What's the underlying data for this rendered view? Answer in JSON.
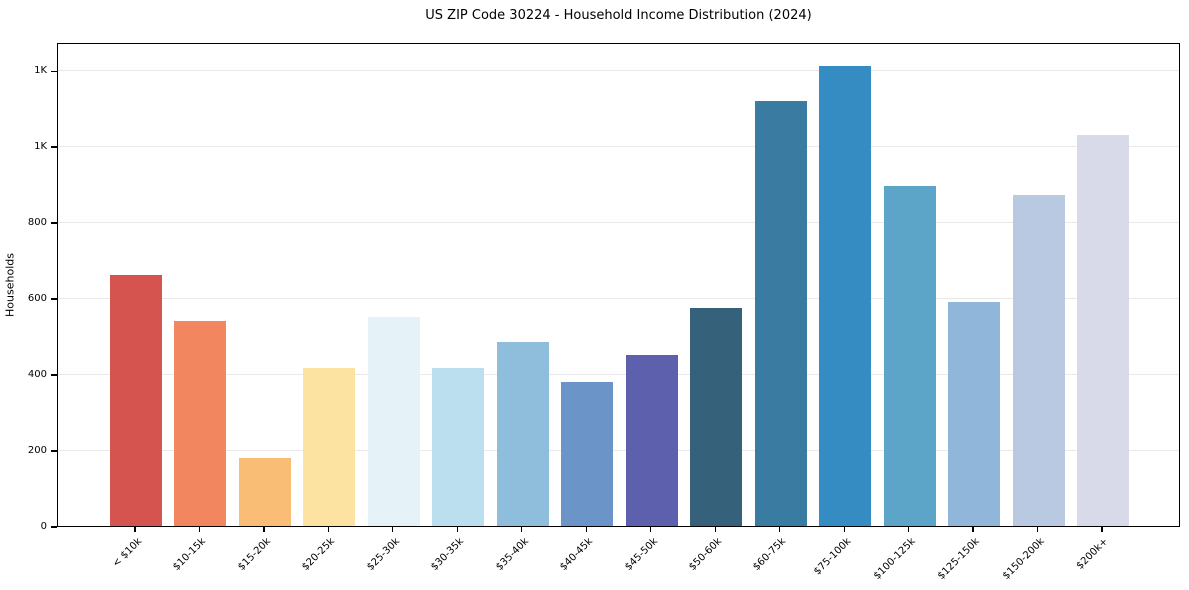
{
  "chart_data": {
    "type": "bar",
    "title": "US ZIP Code 30224 - Household Income Distribution (2024)",
    "xlabel": "",
    "ylabel": "Households",
    "categories": [
      "< $10k",
      "$10-15k",
      "$15-20k",
      "$20-25k",
      "$25-30k",
      "$30-35k",
      "$35-40k",
      "$40-45k",
      "$45-50k",
      "$50-60k",
      "$60-75k",
      "$75-100k",
      "$100-125k",
      "$125-150k",
      "$150-200k",
      "$200k+"
    ],
    "values": [
      660,
      540,
      180,
      415,
      550,
      415,
      485,
      380,
      450,
      575,
      1120,
      1210,
      895,
      590,
      870,
      1030
    ],
    "bar_colors": [
      "#d5544f",
      "#f2875f",
      "#fabd76",
      "#fde3a1",
      "#e5f2f8",
      "#bbdfee",
      "#8fbedd",
      "#6b94c8",
      "#5c60ad",
      "#36617a",
      "#3a7ba1",
      "#348cc2",
      "#5ca5c8",
      "#90b6d9",
      "#b9c9e2",
      "#d9dae9"
    ],
    "ylim": [
      0,
      1274
    ],
    "yticks": [
      {
        "value": 0,
        "label": "0"
      },
      {
        "value": 200,
        "label": "200"
      },
      {
        "value": 400,
        "label": "400"
      },
      {
        "value": 600,
        "label": "600"
      },
      {
        "value": 800,
        "label": "800"
      },
      {
        "value": 1000,
        "label": "1K"
      },
      {
        "value": 1200,
        "label": "1K"
      }
    ],
    "grid": "horizontal",
    "gridline_color": "#e9e9ec",
    "legend": "none"
  }
}
